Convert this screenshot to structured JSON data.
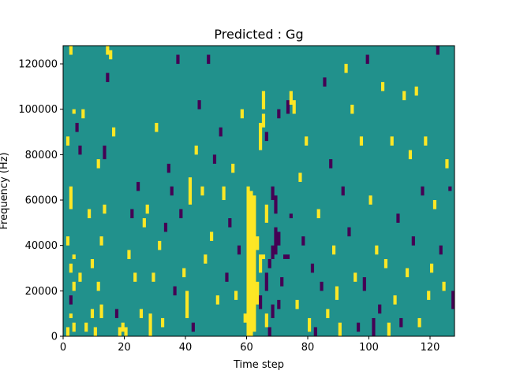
{
  "chart_data": {
    "type": "heatmap",
    "title": "Predicted : Gg",
    "xlabel": "Time step",
    "ylabel": "Frequency (Hz)",
    "xlim": [
      0,
      128
    ],
    "ylim": [
      0,
      128000
    ],
    "x_ticks": [
      0,
      20,
      40,
      60,
      80,
      100,
      120
    ],
    "y_ticks": [
      0,
      20000,
      40000,
      60000,
      80000,
      100000,
      120000
    ],
    "x_tick_labels": [
      "0",
      "20",
      "40",
      "60",
      "80",
      "100",
      "120"
    ],
    "y_tick_labels": [
      "0",
      "20000",
      "40000",
      "60000",
      "80000",
      "100000",
      "120000"
    ],
    "grid": false,
    "legend": "none",
    "colormap": "viridis",
    "n_time_steps": 128,
    "n_frequency_bins": 128,
    "frequency_bin_hz": 1000,
    "levels": [
      {
        "value": -1,
        "color": "#440154"
      },
      {
        "value": 0,
        "color": "#21918c"
      },
      {
        "value": 1,
        "color": "#fde725"
      }
    ],
    "background_value": 0,
    "cells": [
      {
        "t": 60,
        "f0": 0,
        "f1": 66000,
        "v": 1
      },
      {
        "t": 61,
        "f0": 0,
        "f1": 64000,
        "v": 1
      },
      {
        "t": 62,
        "f0": 2000,
        "f1": 62000,
        "v": 1
      },
      {
        "t": 63,
        "f0": 14000,
        "f1": 24000,
        "v": 1
      },
      {
        "t": 63,
        "f0": 38000,
        "f1": 44000,
        "v": 1
      },
      {
        "t": 64,
        "f0": 28000,
        "f1": 36000,
        "v": 1
      },
      {
        "t": 65,
        "f0": 34000,
        "f1": 36000,
        "v": 1
      },
      {
        "t": 66,
        "f0": 50000,
        "f1": 58000,
        "v": 1
      },
      {
        "t": 66,
        "f0": 4000,
        "f1": 10000,
        "v": 1
      },
      {
        "t": 67,
        "f0": 30000,
        "f1": 34000,
        "v": -1
      },
      {
        "t": 67,
        "f0": 0,
        "f1": 4000,
        "v": -1
      },
      {
        "t": 66,
        "f0": 20000,
        "f1": 28000,
        "v": -1
      },
      {
        "t": 68,
        "f0": 60000,
        "f1": 66000,
        "v": -1
      },
      {
        "t": 69,
        "f0": 54000,
        "f1": 62000,
        "v": -1
      },
      {
        "t": 69,
        "f0": 36000,
        "f1": 48000,
        "v": -1
      },
      {
        "t": 70,
        "f0": 40000,
        "f1": 46000,
        "v": -1
      },
      {
        "t": 71,
        "f0": 22000,
        "f1": 26000,
        "v": -1
      },
      {
        "t": 72,
        "f0": 34000,
        "f1": 36000,
        "v": -1
      },
      {
        "t": 73,
        "f0": 34000,
        "f1": 36000,
        "v": -1
      },
      {
        "t": 74,
        "f0": 52000,
        "f1": 54000,
        "v": -1
      },
      {
        "t": 68,
        "f0": 34000,
        "f1": 40000,
        "v": -1
      },
      {
        "t": 68,
        "f0": 8000,
        "f1": 14000,
        "v": -1
      },
      {
        "t": 70,
        "f0": 12000,
        "f1": 16000,
        "v": -1
      },
      {
        "t": 64,
        "f0": 12000,
        "f1": 18000,
        "v": -1
      },
      {
        "t": 65,
        "f0": 100000,
        "f1": 108000,
        "v": 1
      },
      {
        "t": 64,
        "f0": 82000,
        "f1": 94000,
        "v": 1
      },
      {
        "t": 65,
        "f0": 92000,
        "f1": 98000,
        "v": 1
      },
      {
        "t": 66,
        "f0": 86000,
        "f1": 90000,
        "v": -1
      },
      {
        "t": 70,
        "f0": 96000,
        "f1": 100000,
        "v": -1
      },
      {
        "t": 73,
        "f0": 98000,
        "f1": 104000,
        "v": -1
      },
      {
        "t": 74,
        "f0": 102000,
        "f1": 108000,
        "v": 1
      },
      {
        "t": 75,
        "f0": 98000,
        "f1": 104000,
        "v": 1
      },
      {
        "t": 1,
        "f0": 0,
        "f1": 4000,
        "v": 1
      },
      {
        "t": 2,
        "f0": 8000,
        "f1": 10000,
        "v": 1
      },
      {
        "t": 3,
        "f0": 2000,
        "f1": 6000,
        "v": 1
      },
      {
        "t": 2,
        "f0": 14000,
        "f1": 18000,
        "v": -1
      },
      {
        "t": 3,
        "f0": 20000,
        "f1": 24000,
        "v": 1
      },
      {
        "t": 2,
        "f0": 28000,
        "f1": 32000,
        "v": 1
      },
      {
        "t": 3,
        "f0": 34000,
        "f1": 36000,
        "v": 1
      },
      {
        "t": 1,
        "f0": 40000,
        "f1": 44000,
        "v": 1
      },
      {
        "t": 2,
        "f0": 56000,
        "f1": 66000,
        "v": 1
      },
      {
        "t": 1,
        "f0": 84000,
        "f1": 88000,
        "v": 1
      },
      {
        "t": 3,
        "f0": 98000,
        "f1": 100000,
        "v": 1
      },
      {
        "t": 2,
        "f0": 124000,
        "f1": 128000,
        "v": 1
      },
      {
        "t": 4,
        "f0": 90000,
        "f1": 94000,
        "v": -1
      },
      {
        "t": 5,
        "f0": 24000,
        "f1": 28000,
        "v": 1
      },
      {
        "t": 5,
        "f0": 80000,
        "f1": 84000,
        "v": -1
      },
      {
        "t": 6,
        "f0": 96000,
        "f1": 100000,
        "v": 1
      },
      {
        "t": 7,
        "f0": 2000,
        "f1": 6000,
        "v": 1
      },
      {
        "t": 8,
        "f0": 52000,
        "f1": 56000,
        "v": 1
      },
      {
        "t": 9,
        "f0": 30000,
        "f1": 34000,
        "v": 1
      },
      {
        "t": 9,
        "f0": 8000,
        "f1": 12000,
        "v": 1
      },
      {
        "t": 10,
        "f0": 0,
        "f1": 4000,
        "v": 1
      },
      {
        "t": 11,
        "f0": 74000,
        "f1": 78000,
        "v": 1
      },
      {
        "t": 11,
        "f0": 20000,
        "f1": 24000,
        "v": 1
      },
      {
        "t": 12,
        "f0": 8000,
        "f1": 14000,
        "v": 1
      },
      {
        "t": 12,
        "f0": 40000,
        "f1": 44000,
        "v": 1
      },
      {
        "t": 13,
        "f0": 54000,
        "f1": 58000,
        "v": 1
      },
      {
        "t": 13,
        "f0": 78000,
        "f1": 84000,
        "v": -1
      },
      {
        "t": 14,
        "f0": 112000,
        "f1": 116000,
        "v": -1
      },
      {
        "t": 14,
        "f0": 124000,
        "f1": 128000,
        "v": 1
      },
      {
        "t": 15,
        "f0": 122000,
        "f1": 126000,
        "v": 1
      },
      {
        "t": 16,
        "f0": 88000,
        "f1": 92000,
        "v": 1
      },
      {
        "t": 17,
        "f0": 8000,
        "f1": 12000,
        "v": -1
      },
      {
        "t": 18,
        "f0": 0,
        "f1": 4000,
        "v": 1
      },
      {
        "t": 19,
        "f0": 2000,
        "f1": 6000,
        "v": 1
      },
      {
        "t": 20,
        "f0": 0,
        "f1": 4000,
        "v": 1
      },
      {
        "t": 21,
        "f0": 34000,
        "f1": 38000,
        "v": 1
      },
      {
        "t": 22,
        "f0": 52000,
        "f1": 56000,
        "v": -1
      },
      {
        "t": 23,
        "f0": 24000,
        "f1": 28000,
        "v": 1
      },
      {
        "t": 24,
        "f0": 64000,
        "f1": 68000,
        "v": -1
      },
      {
        "t": 25,
        "f0": 8000,
        "f1": 12000,
        "v": 1
      },
      {
        "t": 26,
        "f0": 48000,
        "f1": 52000,
        "v": 1
      },
      {
        "t": 27,
        "f0": 54000,
        "f1": 58000,
        "v": 1
      },
      {
        "t": 28,
        "f0": 0,
        "f1": 10000,
        "v": 1
      },
      {
        "t": 29,
        "f0": 24000,
        "f1": 28000,
        "v": 1
      },
      {
        "t": 30,
        "f0": 90000,
        "f1": 94000,
        "v": 1
      },
      {
        "t": 31,
        "f0": 38000,
        "f1": 42000,
        "v": 1
      },
      {
        "t": 32,
        "f0": 4000,
        "f1": 8000,
        "v": 1
      },
      {
        "t": 33,
        "f0": 46000,
        "f1": 50000,
        "v": -1
      },
      {
        "t": 34,
        "f0": 72000,
        "f1": 76000,
        "v": -1
      },
      {
        "t": 35,
        "f0": 62000,
        "f1": 66000,
        "v": -1
      },
      {
        "t": 36,
        "f0": 18000,
        "f1": 22000,
        "v": -1
      },
      {
        "t": 37,
        "f0": 120000,
        "f1": 124000,
        "v": -1
      },
      {
        "t": 38,
        "f0": 52000,
        "f1": 56000,
        "v": -1
      },
      {
        "t": 39,
        "f0": 26000,
        "f1": 30000,
        "v": 1
      },
      {
        "t": 40,
        "f0": 8000,
        "f1": 20000,
        "v": 1
      },
      {
        "t": 41,
        "f0": 58000,
        "f1": 70000,
        "v": 1
      },
      {
        "t": 42,
        "f0": 2000,
        "f1": 6000,
        "v": -1
      },
      {
        "t": 43,
        "f0": 80000,
        "f1": 84000,
        "v": 1
      },
      {
        "t": 44,
        "f0": 100000,
        "f1": 104000,
        "v": -1
      },
      {
        "t": 45,
        "f0": 62000,
        "f1": 66000,
        "v": 1
      },
      {
        "t": 46,
        "f0": 32000,
        "f1": 36000,
        "v": 1
      },
      {
        "t": 47,
        "f0": 120000,
        "f1": 124000,
        "v": -1
      },
      {
        "t": 48,
        "f0": 42000,
        "f1": 46000,
        "v": 1
      },
      {
        "t": 49,
        "f0": 76000,
        "f1": 80000,
        "v": -1
      },
      {
        "t": 50,
        "f0": 14000,
        "f1": 18000,
        "v": 1
      },
      {
        "t": 51,
        "f0": 88000,
        "f1": 92000,
        "v": -1
      },
      {
        "t": 52,
        "f0": 60000,
        "f1": 66000,
        "v": 1
      },
      {
        "t": 53,
        "f0": 24000,
        "f1": 28000,
        "v": -1
      },
      {
        "t": 54,
        "f0": 48000,
        "f1": 52000,
        "v": -1
      },
      {
        "t": 55,
        "f0": 72000,
        "f1": 76000,
        "v": 1
      },
      {
        "t": 56,
        "f0": 16000,
        "f1": 20000,
        "v": 1
      },
      {
        "t": 57,
        "f0": 36000,
        "f1": 40000,
        "v": -1
      },
      {
        "t": 58,
        "f0": 96000,
        "f1": 100000,
        "v": 1
      },
      {
        "t": 59,
        "f0": 6000,
        "f1": 10000,
        "v": 1
      },
      {
        "t": 76,
        "f0": 12000,
        "f1": 16000,
        "v": 1
      },
      {
        "t": 77,
        "f0": 68000,
        "f1": 72000,
        "v": 1
      },
      {
        "t": 78,
        "f0": 40000,
        "f1": 44000,
        "v": -1
      },
      {
        "t": 79,
        "f0": 84000,
        "f1": 88000,
        "v": 1
      },
      {
        "t": 80,
        "f0": 2000,
        "f1": 8000,
        "v": 1
      },
      {
        "t": 81,
        "f0": 28000,
        "f1": 32000,
        "v": -1
      },
      {
        "t": 82,
        "f0": 0,
        "f1": 4000,
        "v": -1
      },
      {
        "t": 83,
        "f0": 52000,
        "f1": 56000,
        "v": 1
      },
      {
        "t": 84,
        "f0": 20000,
        "f1": 24000,
        "v": -1
      },
      {
        "t": 85,
        "f0": 110000,
        "f1": 114000,
        "v": -1
      },
      {
        "t": 86,
        "f0": 8000,
        "f1": 12000,
        "v": 1
      },
      {
        "t": 87,
        "f0": 74000,
        "f1": 78000,
        "v": -1
      },
      {
        "t": 88,
        "f0": 36000,
        "f1": 40000,
        "v": 1
      },
      {
        "t": 89,
        "f0": 16000,
        "f1": 22000,
        "v": 1
      },
      {
        "t": 90,
        "f0": 0,
        "f1": 6000,
        "v": 1
      },
      {
        "t": 91,
        "f0": 62000,
        "f1": 66000,
        "v": -1
      },
      {
        "t": 92,
        "f0": 116000,
        "f1": 120000,
        "v": 1
      },
      {
        "t": 93,
        "f0": 44000,
        "f1": 48000,
        "v": -1
      },
      {
        "t": 94,
        "f0": 98000,
        "f1": 102000,
        "v": 1
      },
      {
        "t": 95,
        "f0": 24000,
        "f1": 28000,
        "v": 1
      },
      {
        "t": 96,
        "f0": 2000,
        "f1": 6000,
        "v": -1
      },
      {
        "t": 97,
        "f0": 84000,
        "f1": 88000,
        "v": 1
      },
      {
        "t": 98,
        "f0": 20000,
        "f1": 26000,
        "v": -1
      },
      {
        "t": 99,
        "f0": 120000,
        "f1": 124000,
        "v": -1
      },
      {
        "t": 100,
        "f0": 58000,
        "f1": 62000,
        "v": 1
      },
      {
        "t": 101,
        "f0": 0,
        "f1": 8000,
        "v": -1
      },
      {
        "t": 102,
        "f0": 36000,
        "f1": 40000,
        "v": 1
      },
      {
        "t": 103,
        "f0": 10000,
        "f1": 14000,
        "v": -1
      },
      {
        "t": 104,
        "f0": 108000,
        "f1": 112000,
        "v": 1
      },
      {
        "t": 105,
        "f0": 30000,
        "f1": 34000,
        "v": 1
      },
      {
        "t": 106,
        "f0": 0,
        "f1": 6000,
        "v": 1
      },
      {
        "t": 107,
        "f0": 84000,
        "f1": 88000,
        "v": 1
      },
      {
        "t": 108,
        "f0": 14000,
        "f1": 18000,
        "v": 1
      },
      {
        "t": 109,
        "f0": 50000,
        "f1": 54000,
        "v": -1
      },
      {
        "t": 110,
        "f0": 4000,
        "f1": 8000,
        "v": -1
      },
      {
        "t": 111,
        "f0": 104000,
        "f1": 108000,
        "v": 1
      },
      {
        "t": 112,
        "f0": 26000,
        "f1": 30000,
        "v": 1
      },
      {
        "t": 113,
        "f0": 78000,
        "f1": 82000,
        "v": 1
      },
      {
        "t": 114,
        "f0": 40000,
        "f1": 44000,
        "v": -1
      },
      {
        "t": 115,
        "f0": 106000,
        "f1": 110000,
        "v": 1
      },
      {
        "t": 116,
        "f0": 4000,
        "f1": 8000,
        "v": 1
      },
      {
        "t": 117,
        "f0": 62000,
        "f1": 66000,
        "v": -1
      },
      {
        "t": 118,
        "f0": 84000,
        "f1": 88000,
        "v": 1
      },
      {
        "t": 119,
        "f0": 16000,
        "f1": 20000,
        "v": 1
      },
      {
        "t": 120,
        "f0": 28000,
        "f1": 32000,
        "v": 1
      },
      {
        "t": 121,
        "f0": 56000,
        "f1": 60000,
        "v": 1
      },
      {
        "t": 122,
        "f0": 124000,
        "f1": 128000,
        "v": -1
      },
      {
        "t": 123,
        "f0": 36000,
        "f1": 40000,
        "v": -1
      },
      {
        "t": 124,
        "f0": 20000,
        "f1": 24000,
        "v": 1
      },
      {
        "t": 125,
        "f0": 74000,
        "f1": 78000,
        "v": 1
      },
      {
        "t": 126,
        "f0": 64000,
        "f1": 66000,
        "v": -1
      },
      {
        "t": 127,
        "f0": 12000,
        "f1": 20000,
        "v": -1
      }
    ]
  }
}
